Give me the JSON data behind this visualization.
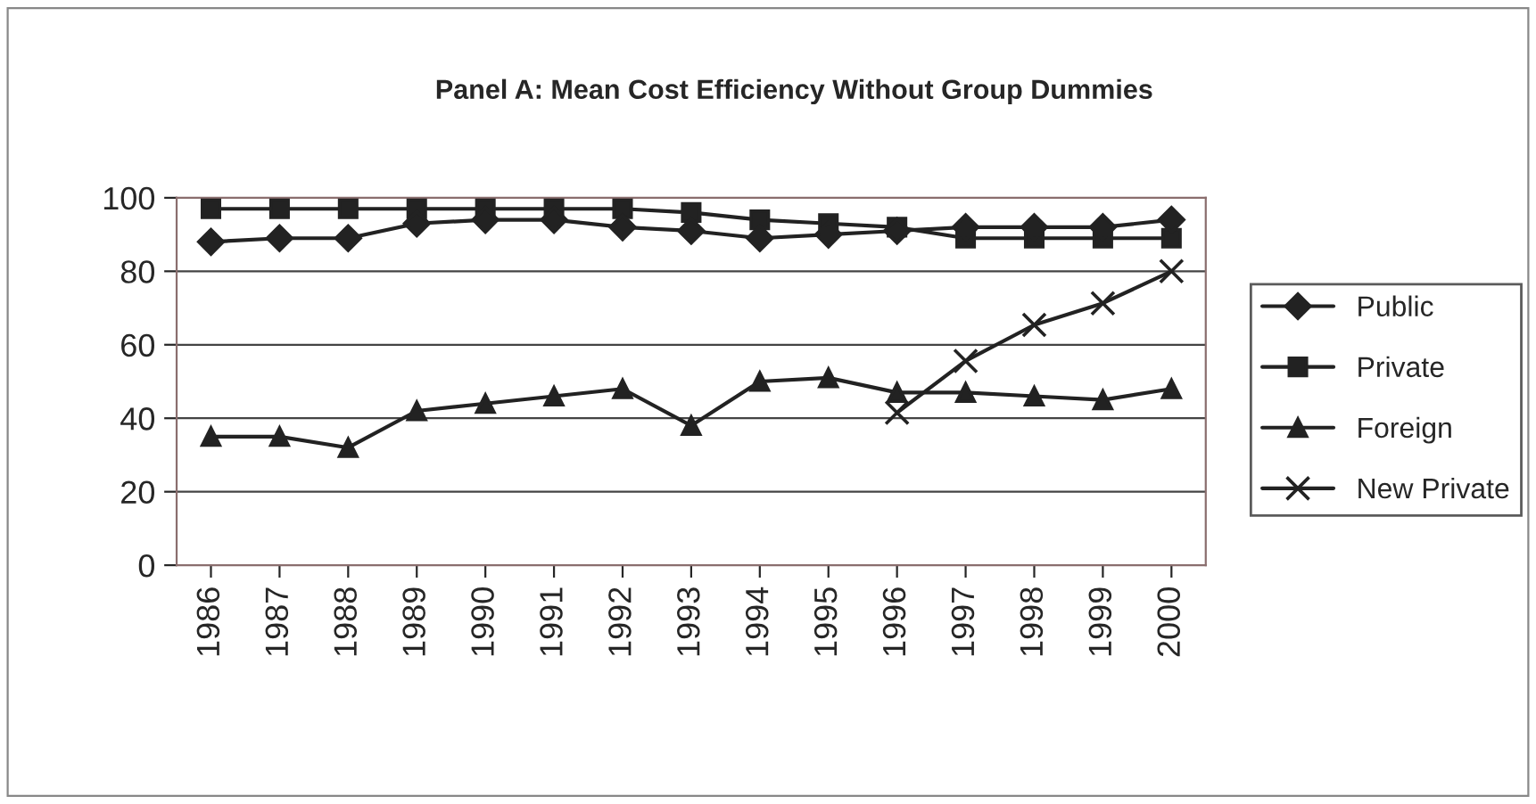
{
  "chart_data": {
    "type": "line",
    "title": "Panel A: Mean Cost Efficiency Without Group Dummies",
    "categories": [
      "1986",
      "1987",
      "1988",
      "1989",
      "1990",
      "1991",
      "1992",
      "1993",
      "1994",
      "1995",
      "1996",
      "1997",
      "1998",
      "1999",
      "2000"
    ],
    "series": [
      {
        "name": "Public",
        "color": "#222222",
        "marker": "diamond",
        "values": [
          88,
          89,
          89,
          93,
          94,
          94,
          92,
          91,
          89,
          90,
          91,
          92,
          92,
          92,
          94
        ]
      },
      {
        "name": "Private",
        "color": "#222222",
        "marker": "square",
        "values": [
          97,
          97,
          97,
          97,
          97,
          97,
          97,
          96,
          94,
          93,
          92,
          89,
          89,
          89,
          89
        ]
      },
      {
        "name": "Foreign",
        "color": "#222222",
        "marker": "triangle",
        "values": [
          35,
          35,
          32,
          42,
          44,
          46,
          48,
          38,
          50,
          51,
          47,
          47,
          46,
          45,
          48
        ]
      },
      {
        "name": "New Private",
        "color": "#222222",
        "marker": "cross",
        "values": [
          null,
          null,
          null,
          null,
          null,
          null,
          null,
          null,
          null,
          null,
          41.5,
          55.6,
          65.4,
          71.3,
          80
        ]
      }
    ],
    "ylim": [
      0,
      100
    ],
    "yticks": [
      0,
      20,
      40,
      60,
      80,
      100
    ],
    "grid": "y",
    "legend": "right"
  }
}
